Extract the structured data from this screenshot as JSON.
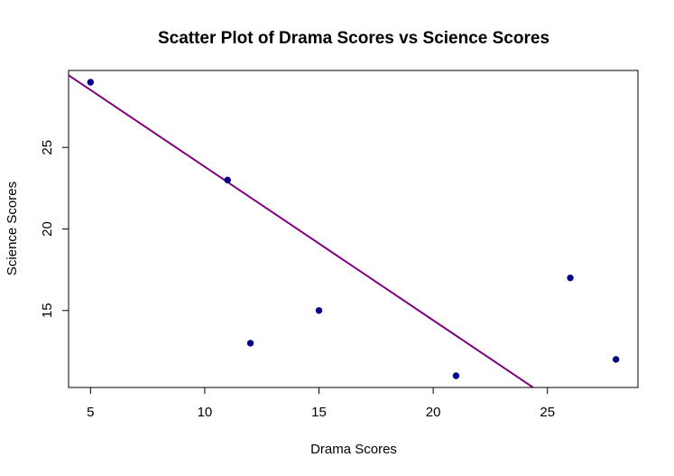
{
  "chart_data": {
    "type": "scatter",
    "title": "Scatter Plot of Drama Scores vs Science Scores",
    "xlabel": "Drama Scores",
    "ylabel": "Science Scores",
    "xlim": [
      4.04,
      28.96
    ],
    "ylim": [
      10.28,
      29.72
    ],
    "x_ticks": [
      5,
      10,
      15,
      20,
      25
    ],
    "y_ticks": [
      15,
      20,
      25
    ],
    "x_tick_labels": [
      "5",
      "10",
      "15",
      "20",
      "25"
    ],
    "y_tick_labels": [
      "15",
      "20",
      "25"
    ],
    "grid": false,
    "legend": "none",
    "point_color": "#00008B",
    "line_color": "#800080",
    "points": [
      {
        "x": 5,
        "y": 29
      },
      {
        "x": 11,
        "y": 23
      },
      {
        "x": 12,
        "y": 13
      },
      {
        "x": 15,
        "y": 15
      },
      {
        "x": 21,
        "y": 11
      },
      {
        "x": 26,
        "y": 17
      },
      {
        "x": 28,
        "y": 12
      }
    ],
    "regression_line": {
      "intercept": 33.23,
      "slope": -0.9415
    }
  }
}
